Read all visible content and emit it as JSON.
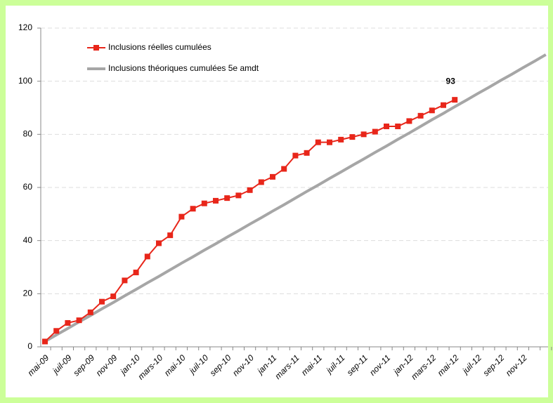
{
  "chart_data": {
    "type": "line",
    "categories": [
      "mai-09",
      null,
      "juil-09",
      null,
      "sep-09",
      null,
      "nov-09",
      null,
      "jan-10",
      null,
      "mars-10",
      null,
      "mai-10",
      null,
      "juil-10",
      null,
      "sep-10",
      null,
      "nov-10",
      null,
      "jan-11",
      null,
      "mars-11",
      null,
      "mai-11",
      null,
      "juil-11",
      null,
      "sep-11",
      null,
      "nov-11",
      null,
      "jan-12",
      null,
      "mars-12",
      null,
      "mai-12",
      null,
      "juil-12",
      null,
      "sep-12",
      null,
      "nov-12",
      null,
      null
    ],
    "series": [
      {
        "name": "Inclusions réelles cumulées",
        "color": "#e8261a",
        "marker": "square",
        "values": [
          2,
          6,
          9,
          10,
          13,
          17,
          19,
          25,
          28,
          34,
          39,
          42,
          49,
          52,
          54,
          55,
          56,
          57,
          59,
          62,
          64,
          67,
          72,
          73,
          77,
          77,
          78,
          79,
          80,
          81,
          83,
          83,
          85,
          87,
          89,
          91,
          93,
          null,
          null,
          null,
          null,
          null,
          null,
          null,
          null
        ]
      },
      {
        "name": "Inclusions théoriques cumulées 5e amdt",
        "color": "#a6a6a6",
        "values": [
          2,
          4.5,
          6.9,
          9.4,
          11.8,
          14.3,
          16.7,
          19.2,
          21.6,
          24.1,
          26.5,
          29,
          31.5,
          33.9,
          36.4,
          38.8,
          41.3,
          43.7,
          46.2,
          48.6,
          51.1,
          53.5,
          56,
          58.5,
          60.9,
          63.4,
          65.8,
          68.3,
          70.7,
          73.2,
          75.6,
          78.1,
          80.5,
          83,
          85.5,
          87.9,
          90.4,
          92.8,
          95.3,
          97.7,
          100.2,
          102.6,
          105.1,
          107.5,
          110
        ]
      }
    ],
    "annotation": "93",
    "ylim": [
      0,
      120
    ],
    "yticks": [
      0,
      20,
      40,
      60,
      80,
      100,
      120
    ],
    "grid": true,
    "legend": "top-left"
  }
}
